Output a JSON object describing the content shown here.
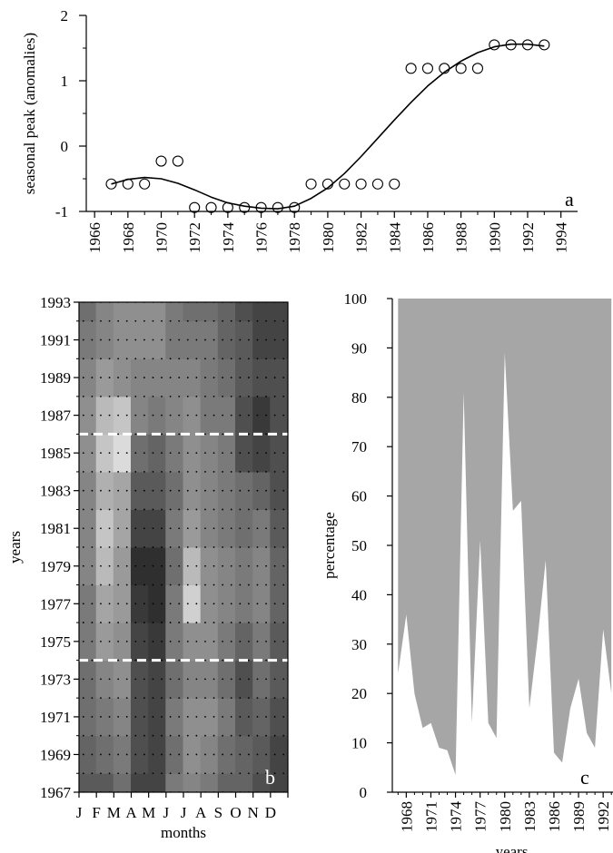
{
  "chart_data": [
    {
      "panel": "a",
      "type": "scatter",
      "panel_label": "a",
      "xlabel": "",
      "ylabel": "seasonal peak (anomalies)",
      "xlim": [
        1965.5,
        1995
      ],
      "ylim": [
        -1,
        2
      ],
      "x_ticks": [
        1966,
        1968,
        1970,
        1972,
        1974,
        1976,
        1978,
        1980,
        1982,
        1984,
        1986,
        1988,
        1990,
        1992,
        1994
      ],
      "y_ticks": [
        -1,
        0,
        1,
        2
      ],
      "y_tick_labels": [
        "-1",
        "0",
        "1",
        "2"
      ],
      "points": [
        {
          "x": 1967,
          "y": -0.58
        },
        {
          "x": 1968,
          "y": -0.58
        },
        {
          "x": 1969,
          "y": -0.58
        },
        {
          "x": 1970,
          "y": -0.23
        },
        {
          "x": 1971,
          "y": -0.23
        },
        {
          "x": 1972,
          "y": -0.94
        },
        {
          "x": 1973,
          "y": -0.94
        },
        {
          "x": 1974,
          "y": -0.94
        },
        {
          "x": 1975,
          "y": -0.94
        },
        {
          "x": 1976,
          "y": -0.94
        },
        {
          "x": 1977,
          "y": -0.94
        },
        {
          "x": 1978,
          "y": -0.94
        },
        {
          "x": 1979,
          "y": -0.58
        },
        {
          "x": 1980,
          "y": -0.58
        },
        {
          "x": 1981,
          "y": -0.58
        },
        {
          "x": 1982,
          "y": -0.58
        },
        {
          "x": 1983,
          "y": -0.58
        },
        {
          "x": 1984,
          "y": -0.58
        },
        {
          "x": 1985,
          "y": 1.19
        },
        {
          "x": 1986,
          "y": 1.19
        },
        {
          "x": 1987,
          "y": 1.19
        },
        {
          "x": 1988,
          "y": 1.19
        },
        {
          "x": 1989,
          "y": 1.19
        },
        {
          "x": 1990,
          "y": 1.55
        },
        {
          "x": 1991,
          "y": 1.55
        },
        {
          "x": 1992,
          "y": 1.55
        },
        {
          "x": 1993,
          "y": 1.55
        }
      ],
      "fit_curve": {
        "x": [
          1967,
          1968,
          1969,
          1970,
          1971,
          1972,
          1973,
          1974,
          1975,
          1976,
          1977,
          1978,
          1979,
          1980,
          1981,
          1982,
          1983,
          1984,
          1985,
          1986,
          1987,
          1988,
          1989,
          1990,
          1991,
          1992,
          1993
        ],
        "y": [
          -0.58,
          -0.51,
          -0.48,
          -0.5,
          -0.57,
          -0.67,
          -0.78,
          -0.87,
          -0.92,
          -0.95,
          -0.96,
          -0.92,
          -0.8,
          -0.64,
          -0.42,
          -0.16,
          0.12,
          0.4,
          0.67,
          0.92,
          1.13,
          1.3,
          1.43,
          1.52,
          1.56,
          1.56,
          1.53
        ]
      }
    },
    {
      "panel": "b",
      "type": "heatmap",
      "panel_label": "b",
      "xlabel": "months",
      "ylabel": "years",
      "x_ticks": [
        "J",
        "F",
        "M",
        "A",
        "M",
        "J",
        "J",
        "A",
        "S",
        "O",
        "N",
        "D"
      ],
      "y_ticks": [
        1967,
        1969,
        1971,
        1973,
        1975,
        1977,
        1979,
        1981,
        1983,
        1985,
        1987,
        1989,
        1991,
        1993
      ],
      "ylim": [
        1967,
        1993
      ],
      "reference_lines_years": [
        1974,
        1986
      ],
      "years": [
        1967,
        1969,
        1971,
        1973,
        1975,
        1977,
        1979,
        1981,
        1983,
        1985,
        1987,
        1989,
        1991,
        1993
      ],
      "intensity_levels": "0 = darkest, 1 = lightest",
      "grid": [
        [
          0.3,
          0.3,
          0.4,
          0.2,
          0.2,
          0.45,
          0.5,
          0.45,
          0.35,
          0.35,
          0.25,
          0.2
        ],
        [
          0.35,
          0.4,
          0.45,
          0.25,
          0.2,
          0.4,
          0.55,
          0.5,
          0.4,
          0.35,
          0.3,
          0.2
        ],
        [
          0.4,
          0.45,
          0.5,
          0.25,
          0.2,
          0.45,
          0.55,
          0.55,
          0.45,
          0.3,
          0.35,
          0.25
        ],
        [
          0.4,
          0.5,
          0.55,
          0.25,
          0.2,
          0.4,
          0.5,
          0.5,
          0.4,
          0.25,
          0.4,
          0.3
        ],
        [
          0.45,
          0.6,
          0.55,
          0.2,
          0.15,
          0.45,
          0.55,
          0.55,
          0.45,
          0.35,
          0.45,
          0.3
        ],
        [
          0.45,
          0.65,
          0.6,
          0.15,
          0.1,
          0.45,
          0.85,
          0.55,
          0.5,
          0.45,
          0.5,
          0.35
        ],
        [
          0.5,
          0.75,
          0.6,
          0.1,
          0.1,
          0.4,
          0.75,
          0.55,
          0.5,
          0.45,
          0.5,
          0.35
        ],
        [
          0.5,
          0.8,
          0.65,
          0.2,
          0.2,
          0.45,
          0.6,
          0.5,
          0.45,
          0.4,
          0.45,
          0.3
        ],
        [
          0.5,
          0.7,
          0.65,
          0.3,
          0.3,
          0.4,
          0.55,
          0.5,
          0.45,
          0.4,
          0.35,
          0.25
        ],
        [
          0.55,
          0.8,
          0.9,
          0.4,
          0.35,
          0.45,
          0.55,
          0.5,
          0.45,
          0.25,
          0.2,
          0.25
        ],
        [
          0.55,
          0.75,
          0.8,
          0.5,
          0.45,
          0.5,
          0.55,
          0.45,
          0.45,
          0.25,
          0.15,
          0.25
        ],
        [
          0.5,
          0.6,
          0.55,
          0.5,
          0.5,
          0.5,
          0.5,
          0.45,
          0.4,
          0.3,
          0.25,
          0.25
        ],
        [
          0.45,
          0.5,
          0.55,
          0.55,
          0.55,
          0.45,
          0.45,
          0.45,
          0.35,
          0.3,
          0.2,
          0.2
        ],
        [
          0.4,
          0.5,
          0.55,
          0.55,
          0.55,
          0.45,
          0.4,
          0.4,
          0.35,
          0.25,
          0.2,
          0.2
        ]
      ]
    },
    {
      "panel": "c",
      "type": "area",
      "panel_label": "c",
      "xlabel": "years",
      "ylabel": "percentage",
      "ylim": [
        0,
        100
      ],
      "y_ticks": [
        0,
        10,
        20,
        30,
        40,
        50,
        60,
        70,
        80,
        90,
        100
      ],
      "x_ticks": [
        1968,
        1971,
        1974,
        1977,
        1980,
        1983,
        1986,
        1989,
        1992
      ],
      "x": [
        1967,
        1968,
        1969,
        1970,
        1971,
        1972,
        1973,
        1974,
        1975,
        1976,
        1977,
        1978,
        1979,
        1980,
        1981,
        1982,
        1983,
        1984,
        1985,
        1986,
        1987,
        1988,
        1989,
        1990,
        1991,
        1992,
        1993
      ],
      "values": [
        24,
        36,
        20,
        13,
        14,
        9,
        8.5,
        3.5,
        81,
        14,
        51,
        14,
        11,
        89,
        57,
        59,
        17,
        31,
        47,
        8,
        6,
        17,
        23,
        12,
        9,
        33,
        20
      ],
      "fill_color": "#a6a6a6"
    }
  ]
}
